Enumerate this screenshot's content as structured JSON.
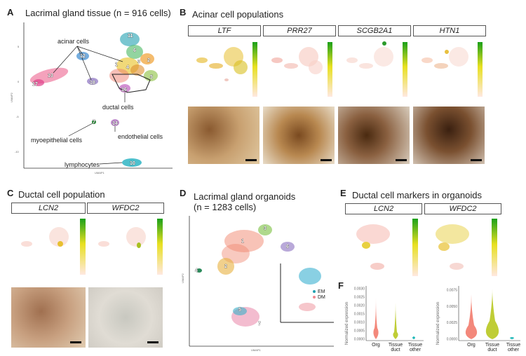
{
  "panels": {
    "A": {
      "letter": "A",
      "title": "Lacrimal gland tissue (n = 916 cells)",
      "xlabel": "UMAP1",
      "ylabel": "UMAP2",
      "yticks": [
        "5",
        "0",
        "-5",
        "-10"
      ],
      "annotations": {
        "acinar": "acinar cells",
        "ductal": "ductal cells",
        "myoepithelial": "myoepithelial cells",
        "endothelial": "endothelial cells",
        "lymphocytes": "lymphocytes"
      },
      "cluster_labels": [
        "11",
        "6",
        "12",
        "2",
        "4",
        "3",
        "5",
        "1",
        "16",
        "10",
        "13",
        "17",
        "7",
        "14",
        "18"
      ]
    },
    "B": {
      "letter": "B",
      "title": "Acinar cell populations",
      "genes": [
        "LTF",
        "PRR27",
        "SCGB2A1",
        "HTN1"
      ]
    },
    "C": {
      "letter": "C",
      "title": "Ductal cell population",
      "genes": [
        "LCN2",
        "WFDC2"
      ]
    },
    "D": {
      "letter": "D",
      "title_line1": "Lacrimal gland organoids",
      "title_line2": "(n = 1283 cells)",
      "xlabel": "UMAP1",
      "ylabel": "UMAP2",
      "cluster_labels": [
        "3",
        "1",
        "6",
        "2",
        "4",
        "5",
        "7"
      ],
      "legend": [
        "EM",
        "DM"
      ]
    },
    "E": {
      "letter": "E",
      "title": "Ductal cell markers in organoids",
      "genes": [
        "LCN2",
        "WFDC2"
      ]
    },
    "F": {
      "letter": "F",
      "ylabel": "Normalized expression",
      "categories": [
        "Org",
        "Tissue duct",
        "Tissue other"
      ],
      "cat_lines": [
        [
          "Org"
        ],
        [
          "Tissue",
          "duct"
        ],
        [
          "Tissue",
          "other"
        ]
      ],
      "left_yticks": [
        "0.0030",
        "0.0025",
        "0.0020",
        "0.0015",
        "0.0010",
        "0.0005",
        "0.0000"
      ],
      "right_yticks": [
        "0.0075",
        "0.0050",
        "0.0025",
        "0.0000"
      ]
    }
  },
  "colors": {
    "scale_top": "#1aa01a",
    "scale_mid": "#e8e020",
    "scale_bottom": "#ffe8e0",
    "violin_org": "#f06a5a",
    "violin_duct": "#b8c820",
    "violin_other": "#20b8b8"
  }
}
